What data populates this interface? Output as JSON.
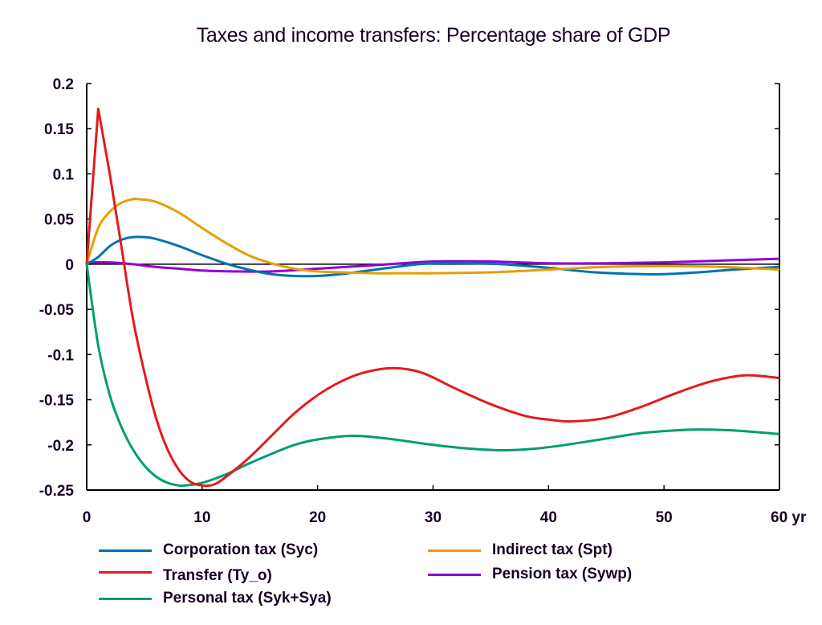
{
  "chart_data": {
    "type": "line",
    "title": "Taxes and income transfers: Percentage share of GDP",
    "xlabel": "",
    "ylabel": "",
    "x_unit_label": "yr",
    "xlim": [
      0,
      60
    ],
    "ylim": [
      -0.25,
      0.2
    ],
    "x_ticks": [
      0,
      10,
      20,
      30,
      40,
      50,
      60
    ],
    "x_tick_labels": [
      "0",
      "10",
      "20",
      "30",
      "40",
      "50",
      "60 yr"
    ],
    "y_ticks": [
      0.2,
      0.15,
      0.1,
      0.05,
      0,
      -0.05,
      -0.1,
      -0.15,
      -0.2,
      -0.25
    ],
    "y_tick_labels": [
      "0.2",
      "0.15",
      "0.1",
      "0.05",
      "0",
      "-0.05",
      "-0.1",
      "-0.15",
      "-0.2",
      "-0.25"
    ],
    "grid": false,
    "zero_line": true,
    "legend_position": "bottom",
    "series": [
      {
        "name": "Corporation tax (Syc)",
        "color": "#0072b2",
        "x": [
          0,
          1,
          2,
          3,
          4,
          5,
          6,
          8,
          10,
          12,
          14,
          16,
          18,
          20,
          22,
          25,
          28,
          30,
          33,
          36,
          40,
          44,
          48,
          50,
          53,
          56,
          60
        ],
        "y": [
          0,
          0.008,
          0.02,
          0.027,
          0.03,
          0.03,
          0.028,
          0.02,
          0.01,
          0.001,
          -0.006,
          -0.011,
          -0.013,
          -0.013,
          -0.011,
          -0.006,
          -0.001,
          0.001,
          0.001,
          0.0,
          -0.004,
          -0.009,
          -0.011,
          -0.011,
          -0.009,
          -0.006,
          -0.003
        ]
      },
      {
        "name": "Transfer (Ty_o)",
        "color": "#e41a1c",
        "x": [
          0,
          1,
          2,
          3,
          4,
          5,
          6,
          7,
          8,
          9,
          10,
          11,
          12,
          14,
          16,
          18,
          20,
          22,
          24,
          26.5,
          29,
          32,
          35,
          38,
          40,
          42,
          45,
          48,
          51,
          54,
          57,
          60
        ],
        "y": [
          0,
          0.172,
          0.1,
          0.02,
          -0.06,
          -0.12,
          -0.17,
          -0.205,
          -0.228,
          -0.241,
          -0.245,
          -0.244,
          -0.236,
          -0.215,
          -0.19,
          -0.165,
          -0.145,
          -0.13,
          -0.12,
          -0.115,
          -0.12,
          -0.138,
          -0.155,
          -0.168,
          -0.172,
          -0.174,
          -0.17,
          -0.158,
          -0.143,
          -0.13,
          -0.123,
          -0.126
        ]
      },
      {
        "name": "Personal tax (Syk+Sya)",
        "color": "#009e73",
        "x": [
          0,
          1,
          2,
          3,
          4,
          5,
          6,
          7,
          8,
          8.5,
          10,
          12,
          14,
          16,
          18,
          20,
          23,
          26,
          30,
          33,
          36,
          39,
          42,
          45,
          48,
          51,
          53,
          56,
          60
        ],
        "y": [
          0,
          -0.09,
          -0.145,
          -0.18,
          -0.205,
          -0.223,
          -0.235,
          -0.242,
          -0.245,
          -0.245,
          -0.242,
          -0.233,
          -0.221,
          -0.21,
          -0.2,
          -0.194,
          -0.19,
          -0.193,
          -0.2,
          -0.204,
          -0.206,
          -0.204,
          -0.199,
          -0.193,
          -0.187,
          -0.184,
          -0.183,
          -0.184,
          -0.188
        ]
      },
      {
        "name": "Indirect tax (Spt)",
        "color": "#e69f00",
        "x": [
          0,
          1,
          2,
          3,
          4,
          4.5,
          6,
          8,
          10,
          12,
          14,
          16,
          18,
          20,
          22,
          25,
          28,
          30,
          35,
          40,
          45,
          50,
          55,
          60
        ],
        "y": [
          0,
          0.04,
          0.058,
          0.068,
          0.072,
          0.072,
          0.069,
          0.057,
          0.04,
          0.024,
          0.01,
          0.001,
          -0.005,
          -0.008,
          -0.009,
          -0.01,
          -0.01,
          -0.01,
          -0.009,
          -0.006,
          -0.003,
          -0.002,
          -0.003,
          -0.006
        ]
      },
      {
        "name": "Pension tax (Sywp)",
        "color": "#9400d3",
        "x": [
          0,
          2,
          4,
          6,
          8,
          10,
          13,
          16,
          20,
          25,
          30,
          35,
          40,
          45,
          50,
          55,
          60
        ],
        "y": [
          0.002,
          0.002,
          0.0,
          -0.003,
          -0.005,
          -0.007,
          -0.008,
          -0.008,
          -0.005,
          -0.001,
          0.003,
          0.003,
          0.001,
          0.001,
          0.002,
          0.004,
          0.006
        ]
      }
    ]
  }
}
